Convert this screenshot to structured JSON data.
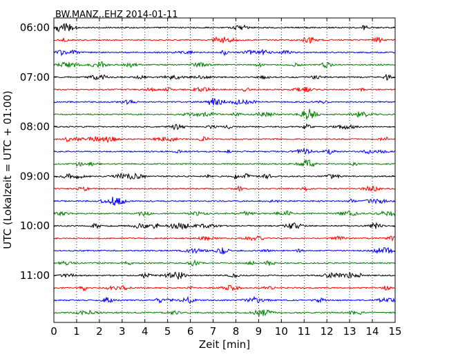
{
  "chart_data": {
    "type": "line",
    "title": "BW.MANZ..EHZ 2014-01-11",
    "xlabel": "Zeit  [min]",
    "ylabel": "UTC (Lokalzeit = UTC + 01:00)",
    "xlim": [
      0,
      15
    ],
    "x_ticks": [
      "0",
      "1",
      "2",
      "3",
      "4",
      "5",
      "6",
      "7",
      "8",
      "9",
      "10",
      "11",
      "12",
      "13",
      "14",
      "15"
    ],
    "y_ticks": [
      "06:00",
      "07:00",
      "08:00",
      "09:00",
      "10:00",
      "11:00"
    ],
    "grid": "vertical dotted",
    "trace_minutes": 15,
    "trace_colors": [
      "#000000",
      "#ff0000",
      "#0000ff",
      "#008000"
    ],
    "traces": [
      {
        "start": "06:00"
      },
      {
        "start": "06:15"
      },
      {
        "start": "06:30"
      },
      {
        "start": "06:45"
      },
      {
        "start": "07:00"
      },
      {
        "start": "07:15"
      },
      {
        "start": "07:30"
      },
      {
        "start": "07:45"
      },
      {
        "start": "08:00"
      },
      {
        "start": "08:15"
      },
      {
        "start": "08:30"
      },
      {
        "start": "08:45"
      },
      {
        "start": "09:00"
      },
      {
        "start": "09:15"
      },
      {
        "start": "09:30"
      },
      {
        "start": "09:45"
      },
      {
        "start": "10:00"
      },
      {
        "start": "10:15"
      },
      {
        "start": "10:30"
      },
      {
        "start": "10:45"
      },
      {
        "start": "11:00"
      },
      {
        "start": "11:15"
      },
      {
        "start": "11:30"
      },
      {
        "start": "11:45"
      }
    ]
  }
}
